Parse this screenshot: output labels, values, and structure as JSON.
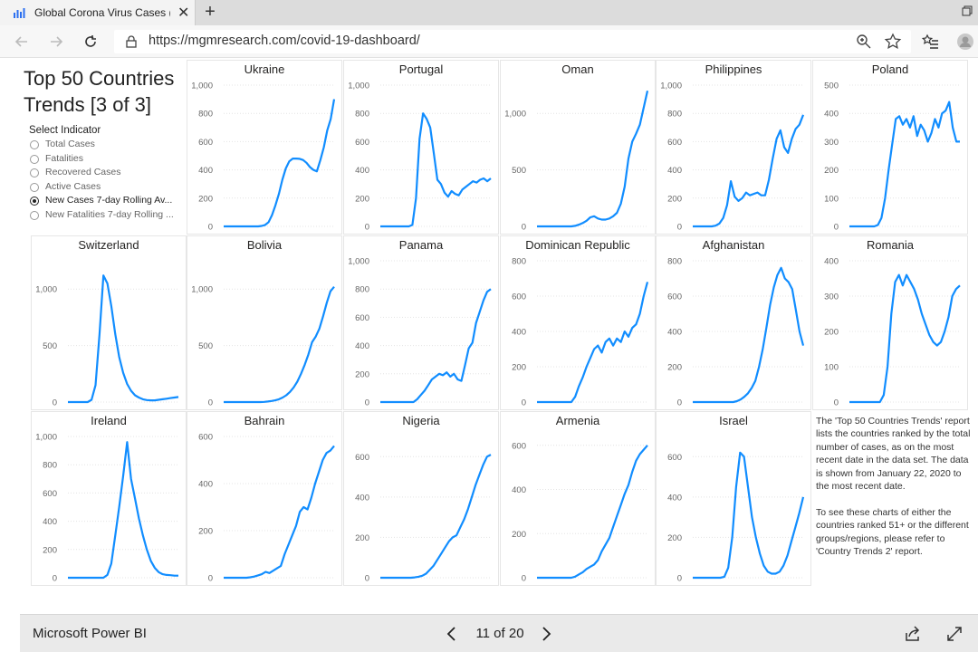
{
  "browser": {
    "tab_title": "Global Corona Virus Cases (Covid",
    "url": "https://mgmresearch.com/covid-19-dashboard/"
  },
  "report": {
    "title": "Top 50 Countries Trends [3 of 3]",
    "slicer": {
      "title": "Select Indicator",
      "options": [
        "Total Cases",
        "Fatalities",
        "Recovered Cases",
        "Active Cases",
        "New Cases 7-day Rolling Av...",
        "New Fatalities 7-day Rolling ..."
      ],
      "selected_index": 4
    },
    "description": {
      "p1": "The 'Top 50 Countries Trends' report lists the countries ranked by the total number of cases, as on the most recent date in the data set. The data is shown from January 22, 2020 to the most recent date.",
      "p2": "To see these charts of either the countries ranked 51+ or the different groups/regions, please refer to 'Country Trends 2' report."
    }
  },
  "line_color": "#118dff",
  "chart_data": [
    {
      "type": "line",
      "title": "Ukraine",
      "yticks": [
        "1,000",
        "800",
        "600",
        "400",
        "200",
        "0"
      ],
      "ylim": [
        0,
        1000
      ],
      "tickvals": [
        1000,
        800,
        600,
        400,
        200,
        0
      ],
      "values": [
        0,
        0,
        0,
        0,
        0,
        0,
        0,
        0,
        0,
        0,
        0,
        3,
        10,
        30,
        80,
        150,
        230,
        330,
        410,
        460,
        480,
        480,
        478,
        470,
        450,
        420,
        400,
        390,
        470,
        560,
        680,
        760,
        900
      ]
    },
    {
      "type": "line",
      "title": "Portugal",
      "yticks": [
        "1,000",
        "800",
        "600",
        "400",
        "200",
        "0"
      ],
      "ylim": [
        0,
        1000
      ],
      "tickvals": [
        1000,
        800,
        600,
        400,
        200,
        0
      ],
      "values": [
        0,
        0,
        0,
        0,
        0,
        0,
        0,
        0,
        0,
        10,
        200,
        620,
        800,
        760,
        700,
        520,
        330,
        300,
        240,
        210,
        250,
        230,
        220,
        260,
        280,
        300,
        320,
        310,
        330,
        340,
        320,
        340
      ]
    },
    {
      "type": "line",
      "title": "Oman",
      "yticks": [
        "1,000",
        "500",
        "0"
      ],
      "ylim": [
        0,
        1250
      ],
      "tickvals": [
        1000,
        500,
        0
      ],
      "values": [
        0,
        0,
        0,
        0,
        0,
        0,
        0,
        0,
        0,
        0,
        5,
        15,
        30,
        50,
        80,
        90,
        70,
        60,
        60,
        70,
        90,
        120,
        200,
        350,
        600,
        750,
        820,
        900,
        1050,
        1200
      ]
    },
    {
      "type": "line",
      "title": "Philippines",
      "yticks": [
        "1,000",
        "800",
        "600",
        "400",
        "200",
        "0"
      ],
      "ylim": [
        0,
        1000
      ],
      "tickvals": [
        1000,
        800,
        600,
        400,
        200,
        0
      ],
      "values": [
        0,
        0,
        0,
        0,
        0,
        0,
        5,
        20,
        60,
        150,
        320,
        210,
        180,
        200,
        240,
        220,
        230,
        240,
        220,
        220,
        330,
        480,
        620,
        680,
        560,
        520,
        620,
        690,
        720,
        790
      ]
    },
    {
      "type": "line",
      "title": "Poland",
      "yticks": [
        "500",
        "400",
        "300",
        "200",
        "100",
        "0"
      ],
      "ylim": [
        0,
        500
      ],
      "tickvals": [
        500,
        400,
        300,
        200,
        100,
        0
      ],
      "values": [
        0,
        0,
        0,
        0,
        0,
        0,
        0,
        0,
        5,
        30,
        100,
        200,
        290,
        380,
        390,
        360,
        380,
        350,
        390,
        320,
        360,
        340,
        300,
        330,
        380,
        350,
        400,
        410,
        440,
        350,
        300,
        300
      ]
    },
    {
      "type": "line",
      "title": "Switzerland",
      "yticks": [
        "1,000",
        "500",
        "0"
      ],
      "ylim": [
        0,
        1250
      ],
      "tickvals": [
        1000,
        500,
        0
      ],
      "values": [
        0,
        0,
        0,
        0,
        0,
        0,
        20,
        150,
        600,
        1120,
        1050,
        850,
        600,
        400,
        260,
        160,
        100,
        60,
        40,
        25,
        18,
        15,
        15,
        20,
        25,
        30,
        35,
        40,
        45
      ]
    },
    {
      "type": "line",
      "title": "Bolivia",
      "yticks": [
        "1,000",
        "500",
        "0"
      ],
      "ylim": [
        0,
        1250
      ],
      "tickvals": [
        1000,
        500,
        0
      ],
      "values": [
        0,
        0,
        0,
        0,
        0,
        0,
        0,
        0,
        0,
        0,
        0,
        2,
        5,
        10,
        15,
        25,
        40,
        60,
        90,
        130,
        180,
        250,
        330,
        420,
        530,
        580,
        650,
        760,
        880,
        980,
        1020
      ]
    },
    {
      "type": "line",
      "title": "Panama",
      "yticks": [
        "1,000",
        "800",
        "600",
        "400",
        "200",
        "0"
      ],
      "ylim": [
        0,
        1000
      ],
      "tickvals": [
        1000,
        800,
        600,
        400,
        200,
        0
      ],
      "values": [
        0,
        0,
        0,
        0,
        0,
        0,
        0,
        0,
        0,
        0,
        20,
        50,
        80,
        120,
        160,
        180,
        200,
        190,
        210,
        180,
        200,
        160,
        150,
        260,
        380,
        420,
        560,
        640,
        720,
        780,
        800
      ]
    },
    {
      "type": "line",
      "title": "Dominican Republic",
      "yticks": [
        "800",
        "600",
        "400",
        "200",
        "0"
      ],
      "ylim": [
        0,
        800
      ],
      "tickvals": [
        800,
        600,
        400,
        200,
        0
      ],
      "values": [
        0,
        0,
        0,
        0,
        0,
        0,
        0,
        0,
        0,
        0,
        30,
        90,
        140,
        200,
        250,
        300,
        320,
        280,
        340,
        360,
        320,
        360,
        340,
        400,
        370,
        420,
        440,
        500,
        600,
        680
      ]
    },
    {
      "type": "line",
      "title": "Afghanistan",
      "yticks": [
        "800",
        "600",
        "400",
        "200",
        "0"
      ],
      "ylim": [
        0,
        800
      ],
      "tickvals": [
        800,
        600,
        400,
        200,
        0
      ],
      "values": [
        0,
        0,
        0,
        0,
        0,
        0,
        0,
        0,
        0,
        0,
        0,
        0,
        5,
        15,
        30,
        50,
        80,
        120,
        200,
        300,
        420,
        550,
        650,
        720,
        760,
        700,
        680,
        640,
        520,
        400,
        320
      ]
    },
    {
      "type": "line",
      "title": "Romania",
      "yticks": [
        "400",
        "300",
        "200",
        "100",
        "0"
      ],
      "ylim": [
        0,
        400
      ],
      "tickvals": [
        400,
        300,
        200,
        100,
        0
      ],
      "values": [
        0,
        0,
        0,
        0,
        0,
        0,
        0,
        0,
        0,
        20,
        100,
        250,
        340,
        360,
        330,
        360,
        340,
        320,
        290,
        250,
        220,
        190,
        170,
        160,
        170,
        200,
        240,
        300,
        320,
        330
      ]
    },
    {
      "type": "line",
      "title": "Ireland",
      "yticks": [
        "1,000",
        "800",
        "600",
        "400",
        "200",
        "0"
      ],
      "ylim": [
        0,
        1000
      ],
      "tickvals": [
        1000,
        800,
        600,
        400,
        200,
        0
      ],
      "values": [
        0,
        0,
        0,
        0,
        0,
        0,
        0,
        0,
        0,
        0,
        20,
        100,
        300,
        500,
        720,
        960,
        700,
        560,
        420,
        300,
        200,
        120,
        70,
        40,
        25,
        20,
        18,
        15,
        15
      ]
    },
    {
      "type": "line",
      "title": "Bahrain",
      "yticks": [
        "600",
        "400",
        "200",
        "0"
      ],
      "ylim": [
        0,
        600
      ],
      "tickvals": [
        600,
        400,
        200,
        0
      ],
      "values": [
        0,
        0,
        0,
        0,
        0,
        0,
        0,
        2,
        5,
        10,
        15,
        25,
        20,
        30,
        40,
        50,
        100,
        140,
        180,
        220,
        280,
        300,
        290,
        340,
        400,
        450,
        500,
        530,
        540,
        560
      ]
    },
    {
      "type": "line",
      "title": "Nigeria",
      "yticks": [
        "600",
        "400",
        "200",
        "0"
      ],
      "ylim": [
        0,
        700
      ],
      "tickvals": [
        600,
        400,
        200,
        0
      ],
      "values": [
        0,
        0,
        0,
        0,
        0,
        0,
        0,
        0,
        0,
        2,
        5,
        10,
        20,
        40,
        60,
        90,
        120,
        150,
        180,
        200,
        210,
        250,
        290,
        340,
        400,
        460,
        510,
        560,
        600,
        610
      ]
    },
    {
      "type": "line",
      "title": "Armenia",
      "yticks": [
        "600",
        "400",
        "200",
        "0"
      ],
      "ylim": [
        0,
        640
      ],
      "tickvals": [
        600,
        400,
        200,
        0
      ],
      "values": [
        0,
        0,
        0,
        0,
        0,
        0,
        0,
        0,
        0,
        0,
        5,
        15,
        25,
        40,
        50,
        60,
        80,
        120,
        150,
        180,
        230,
        280,
        330,
        380,
        420,
        480,
        530,
        560,
        580,
        600
      ]
    },
    {
      "type": "line",
      "title": "Israel",
      "yticks": [
        "600",
        "400",
        "200",
        "0"
      ],
      "ylim": [
        0,
        700
      ],
      "tickvals": [
        600,
        400,
        200,
        0
      ],
      "values": [
        0,
        0,
        0,
        0,
        0,
        0,
        0,
        0,
        5,
        50,
        200,
        450,
        620,
        600,
        450,
        300,
        200,
        120,
        60,
        30,
        20,
        20,
        30,
        60,
        110,
        180,
        250,
        320,
        400
      ]
    }
  ],
  "footer": {
    "brand": "Microsoft Power BI",
    "page": "11 of 20"
  }
}
